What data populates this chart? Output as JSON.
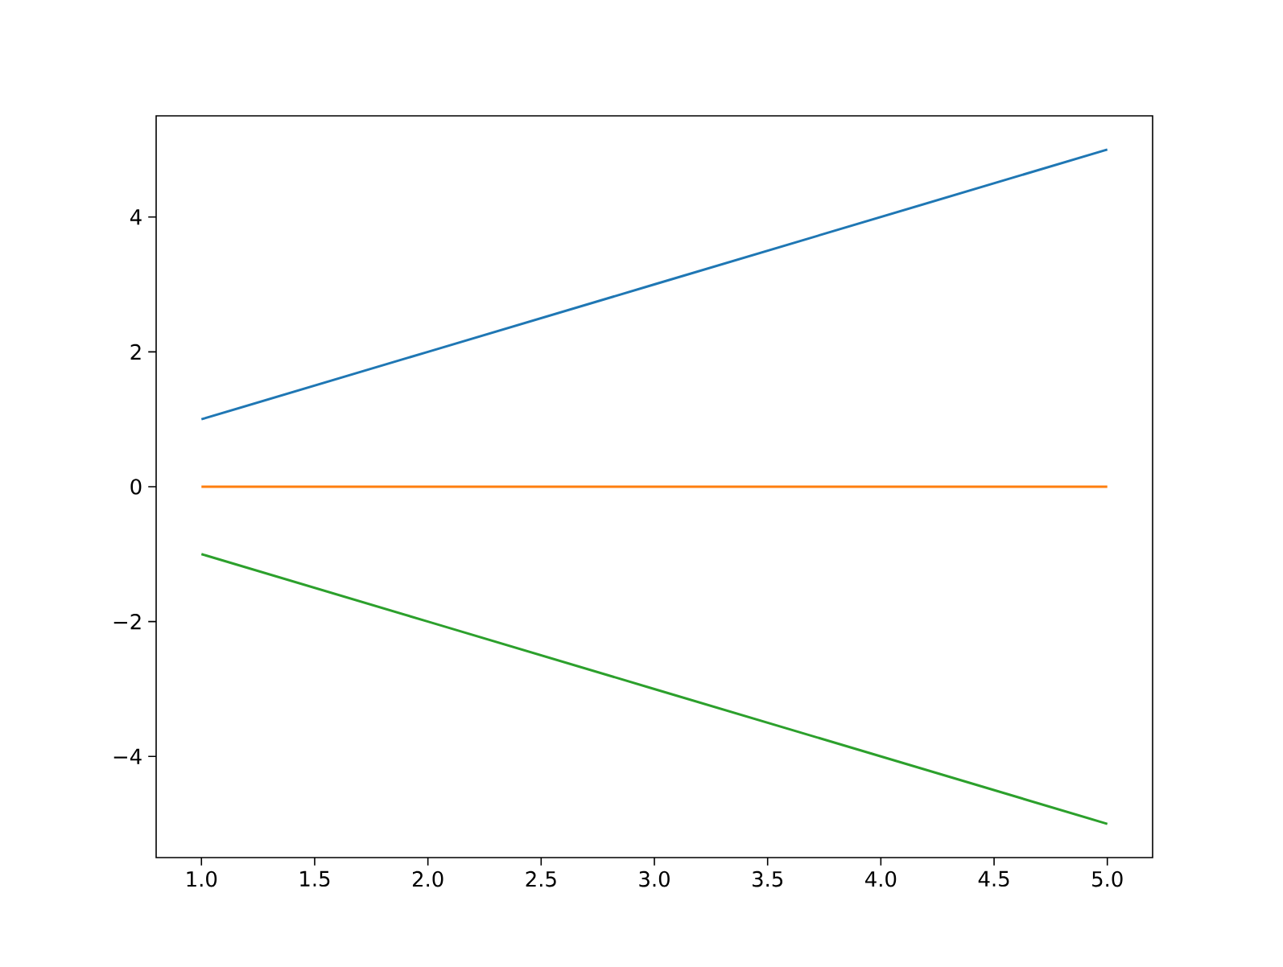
{
  "chart_data": {
    "type": "line",
    "x": [
      1,
      2,
      3,
      4,
      5
    ],
    "series": [
      {
        "color": "#1f77b4",
        "values": [
          1,
          2,
          3,
          4,
          5
        ]
      },
      {
        "color": "#ff7f0e",
        "values": [
          0,
          0,
          0,
          0,
          0
        ]
      },
      {
        "color": "#2ca02c",
        "values": [
          -1,
          -2,
          -3,
          -4,
          -5
        ]
      }
    ],
    "xlim": [
      0.8,
      5.2
    ],
    "ylim": [
      -5.5,
      5.5
    ],
    "xticks": [
      {
        "value": 1,
        "label": "1.0"
      },
      {
        "value": 1.5,
        "label": "1.5"
      },
      {
        "value": 2,
        "label": "2.0"
      },
      {
        "value": 2.5,
        "label": "2.5"
      },
      {
        "value": 3,
        "label": "3.0"
      },
      {
        "value": 3.5,
        "label": "3.5"
      },
      {
        "value": 4,
        "label": "4.0"
      },
      {
        "value": 4.5,
        "label": "4.5"
      },
      {
        "value": 5,
        "label": "5.0"
      }
    ],
    "yticks": [
      {
        "value": -4,
        "label": "−4"
      },
      {
        "value": -2,
        "label": "−2"
      },
      0,
      2,
      4
    ],
    "grid": false,
    "marker": "none",
    "line_style": "solid"
  }
}
